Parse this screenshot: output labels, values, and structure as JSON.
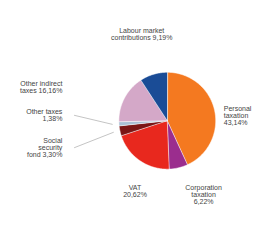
{
  "chart_data": {
    "type": "pie",
    "categories": [
      "Personal\ntaxation\n43,14%",
      "Corporation\ntaxation\n6,22%",
      "VAT\n20,62%",
      "Social\nsecurity\nfond 3,30%",
      "Other taxes\n1,38%",
      "Other indirect\ntaxes 16,16%",
      "Labour market\ncontributions 9,19%"
    ],
    "values": [
      43.14,
      6.22,
      20.62,
      3.3,
      1.38,
      16.16,
      9.19
    ],
    "colors": [
      "#F47920",
      "#9B2D8E",
      "#E8281E",
      "#7B1515",
      "#AABFD4",
      "#D4A8C8",
      "#1A4C96"
    ]
  }
}
